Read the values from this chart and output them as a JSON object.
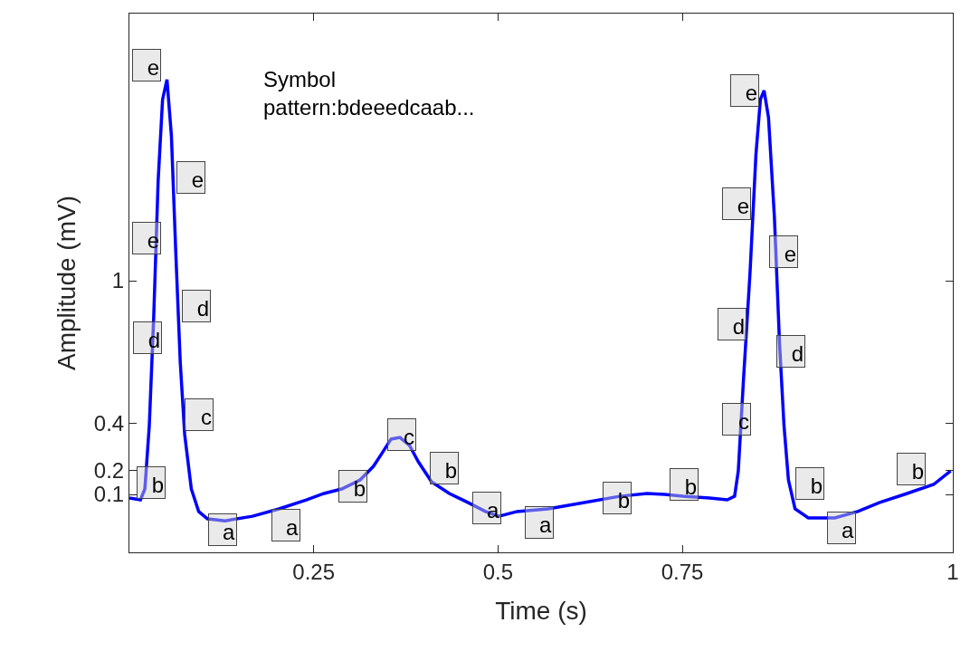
{
  "chart_data": {
    "type": "line",
    "xlabel": "Time (s)",
    "ylabel": "Amplitude (mV)",
    "xlim": [
      0,
      1.117
    ],
    "xticks": [
      0.25,
      0.5,
      0.75,
      {
        "value": 1.117,
        "label": "1"
      }
    ],
    "ylim": [
      -0.144,
      2.125
    ],
    "yticks": [
      0.1,
      0.2,
      0.4,
      1
    ],
    "grid": false,
    "marker": "none",
    "line_style": "solid",
    "series": [
      {
        "color": "#0000ff",
        "x": [
          0,
          0.015,
          0.021,
          0.027,
          0.033,
          0.039,
          0.045,
          0.051,
          0.057,
          0.063,
          0.069,
          0.075,
          0.084,
          0.094,
          0.106,
          0.13,
          0.167,
          0.203,
          0.24,
          0.264,
          0.288,
          0.313,
          0.331,
          0.343,
          0.355,
          0.367,
          0.38,
          0.392,
          0.41,
          0.434,
          0.459,
          0.483,
          0.501,
          0.526,
          0.568,
          0.617,
          0.665,
          0.702,
          0.726,
          0.751,
          0.787,
          0.811,
          0.821,
          0.826,
          0.833,
          0.842,
          0.85,
          0.856,
          0.861,
          0.867,
          0.875,
          0.882,
          0.888,
          0.894,
          0.903,
          0.921,
          0.957,
          0.988,
          1.018,
          1.055,
          1.091,
          1.114
        ],
        "values": [
          0.085,
          0.077,
          0.123,
          0.39,
          0.848,
          1.42,
          1.763,
          1.847,
          1.61,
          1.114,
          0.657,
          0.352,
          0.123,
          0.028,
          -0.003,
          -0.011,
          0.008,
          0.039,
          0.077,
          0.104,
          0.123,
          0.161,
          0.218,
          0.275,
          0.333,
          0.34,
          0.306,
          0.237,
          0.153,
          0.104,
          0.066,
          0.028,
          0.008,
          0.028,
          0.039,
          0.066,
          0.092,
          0.104,
          0.1,
          0.092,
          0.085,
          0.077,
          0.092,
          0.199,
          0.581,
          1.038,
          1.534,
          1.763,
          1.801,
          1.687,
          1.267,
          0.733,
          0.39,
          0.161,
          0.039,
          0.001,
          0.001,
          0.028,
          0.066,
          0.104,
          0.142,
          0.199
        ]
      }
    ],
    "annotations": [
      "Symbol\npattern:bdeeedcaab...",
      {
        "text": "e",
        "x": 0.023,
        "y": 1.908
      },
      {
        "text": "e",
        "x": 0.083,
        "y": 1.435
      },
      {
        "text": "e",
        "x": 0.023,
        "y": 1.179
      },
      {
        "text": "d",
        "x": 0.091,
        "y": 0.893
      },
      {
        "text": "d",
        "x": 0.025,
        "y": 0.76
      },
      {
        "text": "c",
        "x": 0.095,
        "y": 0.436
      },
      {
        "text": "b",
        "x": 0.029,
        "y": 0.15
      },
      {
        "text": "a",
        "x": 0.127,
        "y": -0.049
      },
      {
        "text": "a",
        "x": 0.212,
        "y": -0.03
      },
      {
        "text": "b",
        "x": 0.303,
        "y": 0.134
      },
      {
        "text": "c",
        "x": 0.369,
        "y": 0.352
      },
      {
        "text": "b",
        "x": 0.427,
        "y": 0.211
      },
      {
        "text": "a",
        "x": 0.485,
        "y": 0.043
      },
      {
        "text": "a",
        "x": 0.556,
        "y": -0.018
      },
      {
        "text": "b",
        "x": 0.662,
        "y": 0.085
      },
      {
        "text": "b",
        "x": 0.752,
        "y": 0.142
      },
      {
        "text": "e",
        "x": 0.835,
        "y": 1.801
      },
      {
        "text": "e",
        "x": 0.824,
        "y": 1.324
      },
      {
        "text": "e",
        "x": 0.887,
        "y": 1.122
      },
      {
        "text": "d",
        "x": 0.817,
        "y": 0.817
      },
      {
        "text": "d",
        "x": 0.897,
        "y": 0.703
      },
      {
        "text": "c",
        "x": 0.824,
        "y": 0.417
      },
      {
        "text": "b",
        "x": 0.923,
        "y": 0.146
      },
      {
        "text": "a",
        "x": 0.966,
        "y": -0.041
      },
      {
        "text": "b",
        "x": 1.061,
        "y": 0.207
      }
    ]
  }
}
